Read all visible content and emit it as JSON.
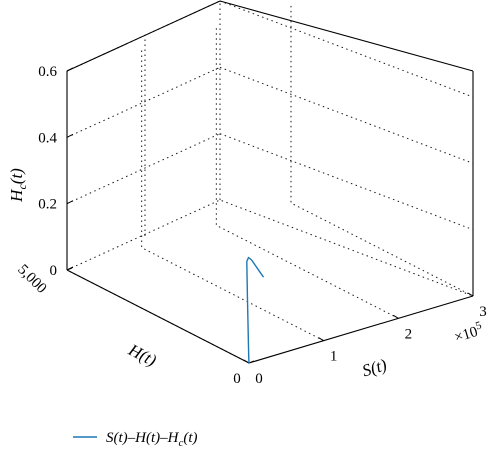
{
  "chart_data": {
    "type": "line",
    "projection": "3d",
    "title": "",
    "xlabel": "S(t)",
    "ylabel": "H(t)",
    "zlabel": "H_c(t)",
    "xlim": [
      0,
      300000
    ],
    "ylim": [
      0,
      5000
    ],
    "zlim": [
      0,
      0.6
    ],
    "x_ticks": [
      0,
      100000,
      200000,
      300000
    ],
    "x_tick_labels": [
      "0",
      "1",
      "2",
      "3"
    ],
    "x_multiplier": "×10^5",
    "y_ticks": [
      0,
      5000
    ],
    "y_tick_labels": [
      "0",
      "5,000"
    ],
    "z_ticks": [
      0,
      0.2,
      0.4,
      0.6
    ],
    "z_tick_labels": [
      "0",
      "0.2",
      "0.4",
      "0.6"
    ],
    "grid": true,
    "legend_position": "bottom-left",
    "color": "#1f77b4",
    "series": [
      {
        "name": "S(t)–H(t)–H_c(t)",
        "x": [
          0,
          10,
          300,
          1500,
          4000,
          8000,
          13000,
          18000,
          23000
        ],
        "y": [
          0,
          8,
          50,
          90,
          95,
          92,
          88,
          85,
          82
        ],
        "z": [
          0,
          0.02,
          0.2,
          0.3,
          0.31,
          0.3,
          0.28,
          0.26,
          0.24
        ]
      }
    ]
  }
}
